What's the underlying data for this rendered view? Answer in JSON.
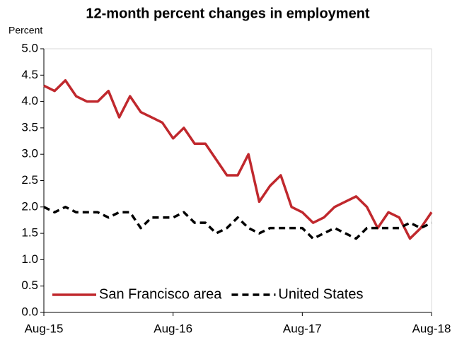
{
  "chart_data": {
    "type": "line",
    "title": "12-month percent changes in employment",
    "y_label": "Percent",
    "categories": [
      "Aug-15",
      null,
      null,
      null,
      null,
      null,
      null,
      null,
      null,
      null,
      null,
      null,
      "Aug-16",
      null,
      null,
      null,
      null,
      null,
      null,
      null,
      null,
      null,
      null,
      null,
      "Aug-17",
      null,
      null,
      null,
      null,
      null,
      null,
      null,
      null,
      null,
      null,
      null,
      "Aug-18"
    ],
    "series": [
      {
        "name": "San Francisco area",
        "color": "#c0282d",
        "dash": false,
        "values": [
          4.3,
          4.2,
          4.4,
          4.1,
          4.0,
          4.0,
          4.2,
          3.7,
          4.1,
          3.8,
          3.7,
          3.6,
          3.3,
          3.5,
          3.2,
          3.2,
          2.9,
          2.6,
          2.6,
          3.0,
          2.1,
          2.4,
          2.6,
          2.0,
          1.9,
          1.7,
          1.8,
          2.0,
          2.1,
          2.2,
          2.0,
          1.6,
          1.9,
          1.8,
          1.4,
          1.6,
          1.9
        ]
      },
      {
        "name": "United States",
        "color": "#000000",
        "dash": true,
        "values": [
          2.0,
          1.9,
          2.0,
          1.9,
          1.9,
          1.9,
          1.8,
          1.9,
          1.9,
          1.6,
          1.8,
          1.8,
          1.8,
          1.9,
          1.7,
          1.7,
          1.5,
          1.6,
          1.8,
          1.6,
          1.5,
          1.6,
          1.6,
          1.6,
          1.6,
          1.4,
          1.5,
          1.6,
          1.5,
          1.4,
          1.6,
          1.6,
          1.6,
          1.6,
          1.7,
          1.6,
          1.7
        ]
      }
    ],
    "ylim": [
      0,
      5
    ],
    "yticks": [
      {
        "value": 0,
        "label": "0.0"
      },
      0.5,
      {
        "value": 1,
        "label": "1.0"
      },
      1.5,
      {
        "value": 2,
        "label": "2.0"
      },
      2.5,
      {
        "value": 3,
        "label": "3.0"
      },
      3.5,
      {
        "value": 4,
        "label": "4.0"
      },
      4.5,
      {
        "value": 5,
        "label": "5.0"
      }
    ],
    "grid": false,
    "legend": "bottom-left"
  }
}
